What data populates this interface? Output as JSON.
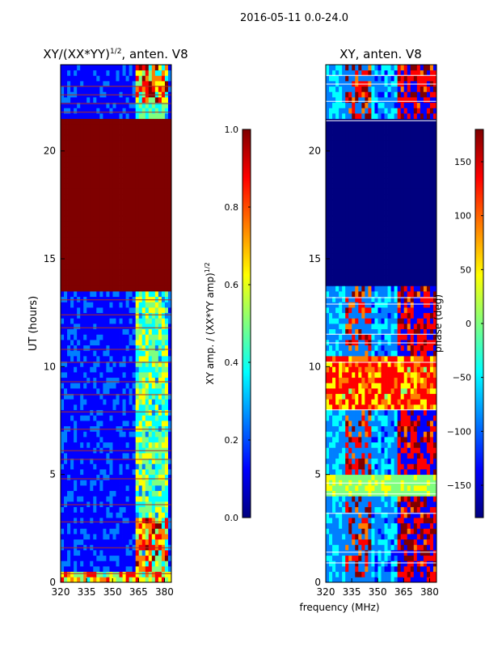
{
  "figure": {
    "suptitle": "2016-05-11 0.0-24.0",
    "xlabel": "frequency (MHz)"
  },
  "colors": {
    "jet": [
      "#00007f",
      "#0000ff",
      "#007fff",
      "#00ffff",
      "#7fff7f",
      "#ffff00",
      "#ff7f00",
      "#ff0000",
      "#7f0000"
    ],
    "axis": "#000000",
    "flag_line": "#b03020",
    "gap_line": "#ffffff"
  },
  "chart_data": [
    {
      "type": "heatmap",
      "title": "XY/(XX*YY)^{1/2}, anten. V8",
      "title_main": "XY/(XX*YY)",
      "title_sup": "1/2",
      "title_tail": ", anten. V8",
      "xlabel": "",
      "ylabel": "UT (hours)",
      "xlim": [
        320,
        384
      ],
      "ylim": [
        0,
        24
      ],
      "xticks": [
        320,
        335,
        350,
        365,
        380
      ],
      "yticks": [
        0,
        5,
        10,
        15,
        20
      ],
      "saturated_band_hours": [
        13.5,
        21.3
      ],
      "colorbar": {
        "label": "XY amp. / (XX*YY amp)^{1/2}",
        "label_main": "XY amp. / (XX*YY amp)",
        "label_sup": "1/2",
        "range": [
          0.0,
          1.0
        ],
        "ticks": [
          0.0,
          0.2,
          0.4,
          0.6,
          0.8,
          1.0
        ],
        "tick_labels": [
          "0.0",
          "0.2",
          "0.4",
          "0.6",
          "0.8",
          "1.0"
        ]
      }
    },
    {
      "type": "heatmap",
      "title": "XY, anten. V8",
      "xlabel": "frequency (MHz)",
      "ylabel": "",
      "xlim": [
        320,
        384
      ],
      "ylim": [
        0,
        24
      ],
      "xticks": [
        320,
        335,
        350,
        365,
        380
      ],
      "yticks": [
        0,
        5,
        10,
        15,
        20
      ],
      "saturated_band_hours": [
        13.6,
        21.3
      ],
      "colorbar": {
        "label": "phase (deg)",
        "range": [
          -180,
          180
        ],
        "ticks": [
          -150,
          -100,
          -50,
          0,
          50,
          100,
          150
        ],
        "tick_labels": [
          "−150",
          "−100",
          "−50",
          "0",
          "50",
          "100",
          "150"
        ]
      }
    }
  ]
}
